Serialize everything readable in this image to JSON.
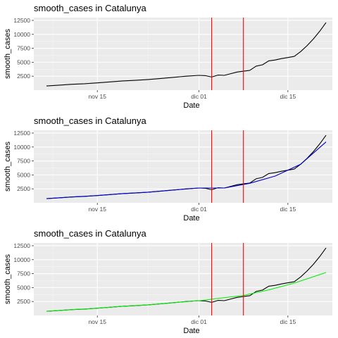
{
  "chart_data": [
    {
      "type": "line",
      "title": "smooth_cases in Catalunya",
      "xlabel": "Date",
      "ylabel": "smooth_cases",
      "x_ticks": [
        "nov 15",
        "dic 01",
        "dic 15"
      ],
      "y_ticks": [
        "2500",
        "5000",
        "7500",
        "10000",
        "12500"
      ],
      "ylim": [
        0,
        13000
      ],
      "xlim": [
        "2020-11-05",
        "2020-12-22"
      ],
      "grid": true,
      "vlines": {
        "color": "#ff0000",
        "x": [
          "2020-12-03",
          "2020-12-08"
        ]
      },
      "series": [
        {
          "color": "#000000",
          "x": [
            "2020-11-07",
            "2020-11-09",
            "2020-11-11",
            "2020-11-13",
            "2020-11-15",
            "2020-11-17",
            "2020-11-19",
            "2020-11-21",
            "2020-11-23",
            "2020-11-25",
            "2020-11-27",
            "2020-11-29",
            "2020-12-01",
            "2020-12-02",
            "2020-12-03",
            "2020-12-04",
            "2020-12-05",
            "2020-12-06",
            "2020-12-07",
            "2020-12-08",
            "2020-12-09",
            "2020-12-10",
            "2020-12-11",
            "2020-12-12",
            "2020-12-13",
            "2020-12-14",
            "2020-12-15",
            "2020-12-16",
            "2020-12-17",
            "2020-12-18",
            "2020-12-19",
            "2020-12-20",
            "2020-12-21"
          ],
          "values": [
            750,
            900,
            1050,
            1150,
            1300,
            1480,
            1650,
            1750,
            1900,
            2100,
            2300,
            2500,
            2650,
            2600,
            2350,
            2700,
            2650,
            2950,
            3250,
            3400,
            3550,
            4300,
            4550,
            5250,
            5400,
            5650,
            5850,
            6050,
            6900,
            7950,
            9150,
            10550,
            12100
          ]
        }
      ]
    },
    {
      "type": "line",
      "title": "smooth_cases in Catalunya",
      "xlabel": "Date",
      "ylabel": "smooth_cases",
      "x_ticks": [
        "nov 15",
        "dic 01",
        "dic 15"
      ],
      "y_ticks": [
        "2500",
        "5000",
        "7500",
        "10000",
        "12500"
      ],
      "ylim": [
        0,
        13000
      ],
      "xlim": [
        "2020-11-05",
        "2020-12-22"
      ],
      "grid": true,
      "vlines": {
        "color": "#ff0000",
        "x": [
          "2020-12-03",
          "2020-12-08"
        ]
      },
      "series": [
        {
          "color": "#000000",
          "x": [
            "2020-11-07",
            "2020-11-09",
            "2020-11-11",
            "2020-11-13",
            "2020-11-15",
            "2020-11-17",
            "2020-11-19",
            "2020-11-21",
            "2020-11-23",
            "2020-11-25",
            "2020-11-27",
            "2020-11-29",
            "2020-12-01",
            "2020-12-02",
            "2020-12-03",
            "2020-12-04",
            "2020-12-05",
            "2020-12-06",
            "2020-12-07",
            "2020-12-08",
            "2020-12-09",
            "2020-12-10",
            "2020-12-11",
            "2020-12-12",
            "2020-12-13",
            "2020-12-14",
            "2020-12-15",
            "2020-12-16",
            "2020-12-17",
            "2020-12-18",
            "2020-12-19",
            "2020-12-20",
            "2020-12-21"
          ],
          "values": [
            750,
            900,
            1050,
            1150,
            1300,
            1480,
            1650,
            1750,
            1900,
            2100,
            2300,
            2500,
            2650,
            2600,
            2350,
            2700,
            2650,
            2950,
            3250,
            3400,
            3550,
            4300,
            4550,
            5250,
            5400,
            5650,
            5850,
            6050,
            6900,
            7950,
            9150,
            10550,
            12100
          ]
        },
        {
          "color": "#0000cd",
          "x": [
            "2020-11-07",
            "2020-11-11",
            "2020-11-15",
            "2020-11-19",
            "2020-11-23",
            "2020-11-27",
            "2020-12-01",
            "2020-12-05",
            "2020-12-09",
            "2020-12-13",
            "2020-12-17",
            "2020-12-21"
          ],
          "values": [
            750,
            1050,
            1300,
            1650,
            1900,
            2300,
            2650,
            2650,
            3500,
            4800,
            6900,
            10900
          ]
        }
      ]
    },
    {
      "type": "line",
      "title": "smooth_cases in Catalunya",
      "xlabel": "Date",
      "ylabel": "smooth_cases",
      "x_ticks": [
        "nov 15",
        "dic 01",
        "dic 15"
      ],
      "y_ticks": [
        "2500",
        "5000",
        "7500",
        "10000",
        "12500"
      ],
      "ylim": [
        0,
        13000
      ],
      "xlim": [
        "2020-11-05",
        "2020-12-22"
      ],
      "grid": true,
      "vlines": {
        "color": "#ff0000",
        "x": [
          "2020-12-03",
          "2020-12-08"
        ]
      },
      "series": [
        {
          "color": "#000000",
          "x": [
            "2020-11-07",
            "2020-11-09",
            "2020-11-11",
            "2020-11-13",
            "2020-11-15",
            "2020-11-17",
            "2020-11-19",
            "2020-11-21",
            "2020-11-23",
            "2020-11-25",
            "2020-11-27",
            "2020-11-29",
            "2020-12-01",
            "2020-12-02",
            "2020-12-03",
            "2020-12-04",
            "2020-12-05",
            "2020-12-06",
            "2020-12-07",
            "2020-12-08",
            "2020-12-09",
            "2020-12-10",
            "2020-12-11",
            "2020-12-12",
            "2020-12-13",
            "2020-12-14",
            "2020-12-15",
            "2020-12-16",
            "2020-12-17",
            "2020-12-18",
            "2020-12-19",
            "2020-12-20",
            "2020-12-21"
          ],
          "values": [
            750,
            900,
            1050,
            1150,
            1300,
            1480,
            1650,
            1750,
            1900,
            2100,
            2300,
            2500,
            2650,
            2600,
            2350,
            2700,
            2650,
            2950,
            3250,
            3400,
            3550,
            4300,
            4550,
            5250,
            5400,
            5650,
            5850,
            6050,
            6900,
            7950,
            9150,
            10550,
            12100
          ]
        },
        {
          "color": "#00ee00",
          "x": [
            "2020-11-07",
            "2020-11-11",
            "2020-11-15",
            "2020-11-19",
            "2020-11-23",
            "2020-11-27",
            "2020-12-01",
            "2020-12-08",
            "2020-12-12",
            "2020-12-16",
            "2020-12-21"
          ],
          "values": [
            750,
            1050,
            1300,
            1650,
            1900,
            2300,
            2650,
            3600,
            4600,
            5800,
            7700
          ]
        }
      ]
    }
  ]
}
